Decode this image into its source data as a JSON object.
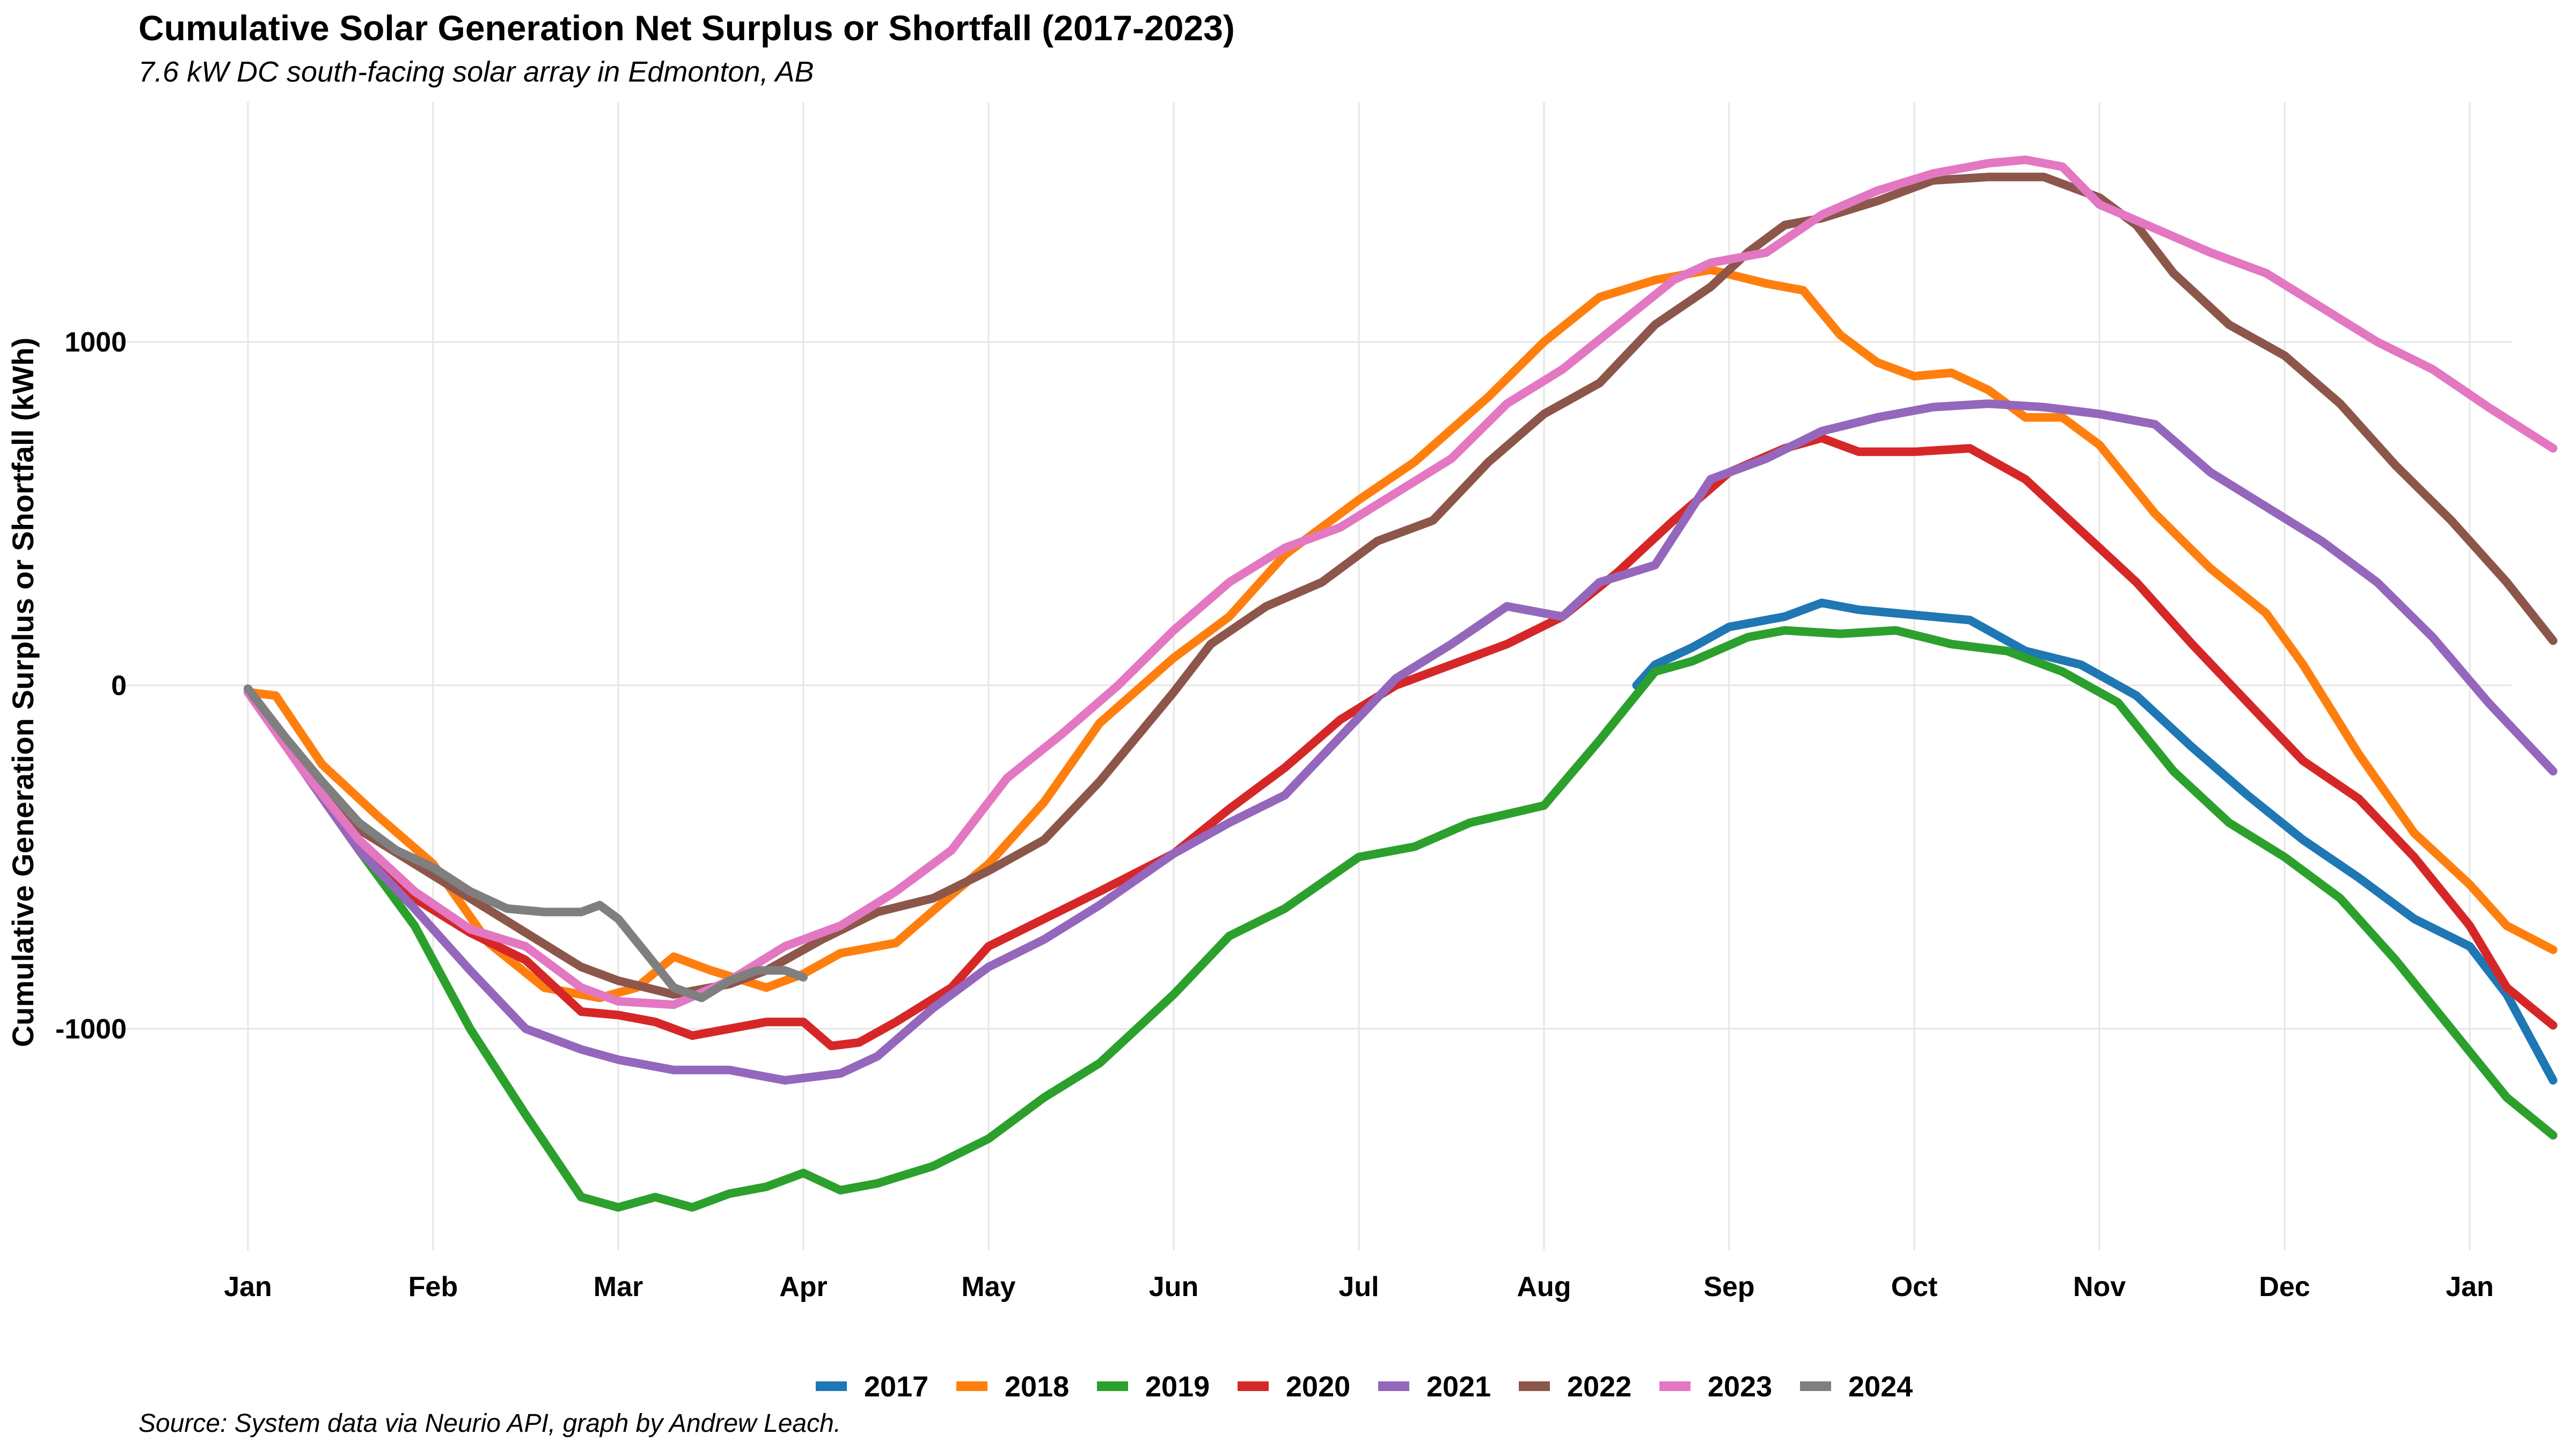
{
  "chart_data": {
    "type": "line",
    "title": "Cumulative Solar Generation Net Surplus or Shortfall (2017-2023)",
    "subtitle": "7.6 kW DC south-facing solar array in Edmonton, AB",
    "caption": "Source: System data via Neurio API, graph by Andrew Leach.",
    "xlabel": "",
    "ylabel": "Cumulative Generation Surplus or Shortfall (kWh)",
    "ylim": [
      -1700,
      1700
    ],
    "y_ticks": [
      -1000,
      0,
      1000
    ],
    "x_ticks": [
      "Jan",
      "Feb",
      "Mar",
      "Apr",
      "May",
      "Jun",
      "Jul",
      "Aug",
      "Sep",
      "Oct",
      "Nov",
      "Dec",
      "Jan"
    ],
    "grid": true,
    "legend_position": "bottom",
    "series": [
      {
        "name": "2017",
        "color": "#1f77b4",
        "points": [
          [
            7.5,
            0
          ],
          [
            7.6,
            60
          ],
          [
            7.8,
            110
          ],
          [
            8.0,
            170
          ],
          [
            8.3,
            200
          ],
          [
            8.5,
            240
          ],
          [
            8.7,
            220
          ],
          [
            8.9,
            210
          ],
          [
            9.1,
            200
          ],
          [
            9.3,
            190
          ],
          [
            9.6,
            100
          ],
          [
            9.9,
            60
          ],
          [
            10.2,
            -30
          ],
          [
            10.5,
            -180
          ],
          [
            10.8,
            -320
          ],
          [
            11.1,
            -450
          ],
          [
            11.4,
            -560
          ],
          [
            11.7,
            -680
          ],
          [
            12.0,
            -760
          ],
          [
            12.2,
            -900
          ],
          [
            12.45,
            -1150
          ]
        ]
      },
      {
        "name": "2018",
        "color": "#ff7f0e",
        "points": [
          [
            0,
            -20
          ],
          [
            0.15,
            -30
          ],
          [
            0.4,
            -230
          ],
          [
            0.7,
            -380
          ],
          [
            1.0,
            -520
          ],
          [
            1.3,
            -750
          ],
          [
            1.6,
            -880
          ],
          [
            1.9,
            -910
          ],
          [
            2.1,
            -880
          ],
          [
            2.3,
            -790
          ],
          [
            2.5,
            -830
          ],
          [
            2.8,
            -880
          ],
          [
            3.0,
            -840
          ],
          [
            3.2,
            -780
          ],
          [
            3.5,
            -750
          ],
          [
            3.8,
            -610
          ],
          [
            4.0,
            -520
          ],
          [
            4.3,
            -340
          ],
          [
            4.6,
            -110
          ],
          [
            5.0,
            80
          ],
          [
            5.3,
            200
          ],
          [
            5.6,
            380
          ],
          [
            6.0,
            540
          ],
          [
            6.3,
            650
          ],
          [
            6.7,
            840
          ],
          [
            7.0,
            1000
          ],
          [
            7.3,
            1130
          ],
          [
            7.6,
            1180
          ],
          [
            7.9,
            1210
          ],
          [
            8.2,
            1170
          ],
          [
            8.4,
            1150
          ],
          [
            8.6,
            1020
          ],
          [
            8.8,
            940
          ],
          [
            9.0,
            900
          ],
          [
            9.2,
            910
          ],
          [
            9.4,
            860
          ],
          [
            9.6,
            780
          ],
          [
            9.8,
            780
          ],
          [
            10.0,
            700
          ],
          [
            10.3,
            500
          ],
          [
            10.6,
            340
          ],
          [
            10.9,
            210
          ],
          [
            11.1,
            60
          ],
          [
            11.4,
            -200
          ],
          [
            11.7,
            -430
          ],
          [
            12.0,
            -580
          ],
          [
            12.2,
            -700
          ],
          [
            12.45,
            -770
          ]
        ]
      },
      {
        "name": "2019",
        "color": "#2ca02c",
        "points": [
          [
            0,
            -10
          ],
          [
            0.3,
            -250
          ],
          [
            0.6,
            -480
          ],
          [
            0.9,
            -700
          ],
          [
            1.2,
            -1000
          ],
          [
            1.5,
            -1250
          ],
          [
            1.8,
            -1490
          ],
          [
            2.0,
            -1520
          ],
          [
            2.2,
            -1490
          ],
          [
            2.4,
            -1520
          ],
          [
            2.6,
            -1480
          ],
          [
            2.8,
            -1460
          ],
          [
            3.0,
            -1420
          ],
          [
            3.2,
            -1470
          ],
          [
            3.4,
            -1450
          ],
          [
            3.7,
            -1400
          ],
          [
            4.0,
            -1320
          ],
          [
            4.3,
            -1200
          ],
          [
            4.6,
            -1100
          ],
          [
            5.0,
            -900
          ],
          [
            5.3,
            -730
          ],
          [
            5.6,
            -650
          ],
          [
            6.0,
            -500
          ],
          [
            6.3,
            -470
          ],
          [
            6.6,
            -400
          ],
          [
            7.0,
            -350
          ],
          [
            7.3,
            -160
          ],
          [
            7.6,
            40
          ],
          [
            7.8,
            70
          ],
          [
            8.1,
            140
          ],
          [
            8.3,
            160
          ],
          [
            8.6,
            150
          ],
          [
            8.9,
            160
          ],
          [
            9.2,
            120
          ],
          [
            9.5,
            100
          ],
          [
            9.8,
            40
          ],
          [
            10.1,
            -50
          ],
          [
            10.4,
            -250
          ],
          [
            10.7,
            -400
          ],
          [
            11.0,
            -500
          ],
          [
            11.3,
            -620
          ],
          [
            11.6,
            -800
          ],
          [
            11.9,
            -1000
          ],
          [
            12.2,
            -1200
          ],
          [
            12.45,
            -1310
          ]
        ]
      },
      {
        "name": "2020",
        "color": "#d62728",
        "points": [
          [
            0,
            -20
          ],
          [
            0.3,
            -250
          ],
          [
            0.6,
            -480
          ],
          [
            0.9,
            -620
          ],
          [
            1.2,
            -720
          ],
          [
            1.5,
            -800
          ],
          [
            1.8,
            -950
          ],
          [
            2.0,
            -960
          ],
          [
            2.2,
            -980
          ],
          [
            2.4,
            -1020
          ],
          [
            2.6,
            -1000
          ],
          [
            2.8,
            -980
          ],
          [
            3.0,
            -980
          ],
          [
            3.15,
            -1050
          ],
          [
            3.3,
            -1040
          ],
          [
            3.5,
            -980
          ],
          [
            3.8,
            -880
          ],
          [
            4.0,
            -760
          ],
          [
            4.3,
            -680
          ],
          [
            4.6,
            -600
          ],
          [
            5.0,
            -490
          ],
          [
            5.3,
            -360
          ],
          [
            5.6,
            -240
          ],
          [
            5.9,
            -100
          ],
          [
            6.2,
            0
          ],
          [
            6.5,
            60
          ],
          [
            6.8,
            120
          ],
          [
            7.1,
            200
          ],
          [
            7.4,
            330
          ],
          [
            7.7,
            480
          ],
          [
            8.0,
            620
          ],
          [
            8.3,
            690
          ],
          [
            8.5,
            720
          ],
          [
            8.7,
            680
          ],
          [
            9.0,
            680
          ],
          [
            9.3,
            690
          ],
          [
            9.6,
            600
          ],
          [
            9.9,
            450
          ],
          [
            10.2,
            300
          ],
          [
            10.5,
            120
          ],
          [
            10.8,
            -50
          ],
          [
            11.1,
            -220
          ],
          [
            11.4,
            -330
          ],
          [
            11.7,
            -500
          ],
          [
            12.0,
            -700
          ],
          [
            12.2,
            -880
          ],
          [
            12.45,
            -990
          ]
        ]
      },
      {
        "name": "2021",
        "color": "#9467bd",
        "points": [
          [
            0,
            -20
          ],
          [
            0.3,
            -250
          ],
          [
            0.6,
            -480
          ],
          [
            0.9,
            -650
          ],
          [
            1.2,
            -830
          ],
          [
            1.5,
            -1000
          ],
          [
            1.8,
            -1060
          ],
          [
            2.0,
            -1090
          ],
          [
            2.3,
            -1120
          ],
          [
            2.6,
            -1120
          ],
          [
            2.9,
            -1150
          ],
          [
            3.2,
            -1130
          ],
          [
            3.4,
            -1080
          ],
          [
            3.7,
            -940
          ],
          [
            4.0,
            -820
          ],
          [
            4.3,
            -740
          ],
          [
            4.6,
            -640
          ],
          [
            5.0,
            -490
          ],
          [
            5.3,
            -400
          ],
          [
            5.6,
            -320
          ],
          [
            5.9,
            -150
          ],
          [
            6.2,
            20
          ],
          [
            6.5,
            120
          ],
          [
            6.8,
            230
          ],
          [
            7.1,
            200
          ],
          [
            7.3,
            300
          ],
          [
            7.6,
            350
          ],
          [
            7.9,
            600
          ],
          [
            8.2,
            660
          ],
          [
            8.5,
            740
          ],
          [
            8.8,
            780
          ],
          [
            9.1,
            810
          ],
          [
            9.4,
            820
          ],
          [
            9.7,
            810
          ],
          [
            10.0,
            790
          ],
          [
            10.3,
            760
          ],
          [
            10.6,
            620
          ],
          [
            10.9,
            520
          ],
          [
            11.2,
            420
          ],
          [
            11.5,
            300
          ],
          [
            11.8,
            140
          ],
          [
            12.1,
            -50
          ],
          [
            12.45,
            -250
          ]
        ]
      },
      {
        "name": "2022",
        "color": "#8c564b",
        "points": [
          [
            0,
            -20
          ],
          [
            0.3,
            -250
          ],
          [
            0.6,
            -420
          ],
          [
            0.9,
            -520
          ],
          [
            1.2,
            -620
          ],
          [
            1.5,
            -720
          ],
          [
            1.8,
            -820
          ],
          [
            2.0,
            -860
          ],
          [
            2.3,
            -900
          ],
          [
            2.6,
            -870
          ],
          [
            2.8,
            -830
          ],
          [
            3.1,
            -740
          ],
          [
            3.4,
            -660
          ],
          [
            3.7,
            -620
          ],
          [
            4.0,
            -540
          ],
          [
            4.3,
            -450
          ],
          [
            4.6,
            -280
          ],
          [
            5.0,
            -20
          ],
          [
            5.2,
            120
          ],
          [
            5.5,
            230
          ],
          [
            5.8,
            300
          ],
          [
            6.1,
            420
          ],
          [
            6.4,
            480
          ],
          [
            6.7,
            650
          ],
          [
            7.0,
            790
          ],
          [
            7.3,
            880
          ],
          [
            7.6,
            1050
          ],
          [
            7.9,
            1160
          ],
          [
            8.1,
            1260
          ],
          [
            8.3,
            1340
          ],
          [
            8.5,
            1360
          ],
          [
            8.8,
            1410
          ],
          [
            9.1,
            1470
          ],
          [
            9.4,
            1480
          ],
          [
            9.7,
            1480
          ],
          [
            10.0,
            1420
          ],
          [
            10.2,
            1340
          ],
          [
            10.4,
            1200
          ],
          [
            10.7,
            1050
          ],
          [
            11.0,
            960
          ],
          [
            11.3,
            820
          ],
          [
            11.6,
            640
          ],
          [
            11.9,
            480
          ],
          [
            12.2,
            300
          ],
          [
            12.45,
            130
          ]
        ]
      },
      {
        "name": "2023",
        "color": "#e377c2",
        "points": [
          [
            0,
            -20
          ],
          [
            0.3,
            -250
          ],
          [
            0.6,
            -450
          ],
          [
            0.9,
            -600
          ],
          [
            1.2,
            -710
          ],
          [
            1.5,
            -760
          ],
          [
            1.8,
            -880
          ],
          [
            2.0,
            -920
          ],
          [
            2.3,
            -930
          ],
          [
            2.6,
            -860
          ],
          [
            2.9,
            -760
          ],
          [
            3.2,
            -700
          ],
          [
            3.5,
            -600
          ],
          [
            3.8,
            -480
          ],
          [
            4.1,
            -270
          ],
          [
            4.4,
            -140
          ],
          [
            4.7,
            0
          ],
          [
            5.0,
            160
          ],
          [
            5.3,
            300
          ],
          [
            5.6,
            400
          ],
          [
            5.9,
            460
          ],
          [
            6.2,
            560
          ],
          [
            6.5,
            660
          ],
          [
            6.8,
            820
          ],
          [
            7.1,
            920
          ],
          [
            7.4,
            1050
          ],
          [
            7.7,
            1180
          ],
          [
            7.9,
            1230
          ],
          [
            8.2,
            1260
          ],
          [
            8.5,
            1370
          ],
          [
            8.8,
            1440
          ],
          [
            9.1,
            1490
          ],
          [
            9.4,
            1520
          ],
          [
            9.6,
            1530
          ],
          [
            9.8,
            1510
          ],
          [
            10.0,
            1400
          ],
          [
            10.3,
            1330
          ],
          [
            10.6,
            1260
          ],
          [
            10.9,
            1200
          ],
          [
            11.2,
            1100
          ],
          [
            11.5,
            1000
          ],
          [
            11.8,
            920
          ],
          [
            12.1,
            810
          ],
          [
            12.45,
            690
          ]
        ]
      },
      {
        "name": "2024",
        "color": "#7f7f7f",
        "points": [
          [
            0,
            -10
          ],
          [
            0.2,
            -150
          ],
          [
            0.4,
            -280
          ],
          [
            0.6,
            -400
          ],
          [
            0.8,
            -480
          ],
          [
            1.0,
            -530
          ],
          [
            1.2,
            -600
          ],
          [
            1.4,
            -650
          ],
          [
            1.6,
            -660
          ],
          [
            1.8,
            -660
          ],
          [
            1.9,
            -640
          ],
          [
            2.0,
            -680
          ],
          [
            2.15,
            -780
          ],
          [
            2.3,
            -880
          ],
          [
            2.45,
            -910
          ],
          [
            2.6,
            -860
          ],
          [
            2.75,
            -830
          ],
          [
            2.9,
            -830
          ],
          [
            3.0,
            -850
          ]
        ]
      }
    ]
  }
}
